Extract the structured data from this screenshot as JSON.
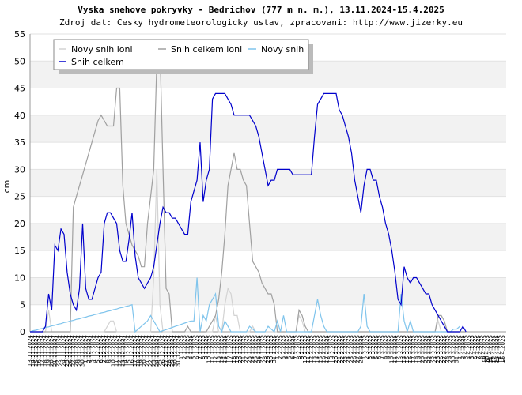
{
  "chart_data": {
    "type": "line",
    "title": "Vyska snehove pokryvky - Bedrichov (777 m n. m.), 13.11.2024-15.4.2025",
    "subtitle": "Zdroj dat: Cesky hydrometeorologicky ustav, zpracovani: http://www.jizerky.eu",
    "y_label": "cm",
    "x_label": "datum",
    "ylim": [
      0,
      55
    ],
    "yticks": [
      0,
      5,
      10,
      15,
      20,
      25,
      30,
      35,
      40,
      45,
      50,
      55
    ],
    "grid": true,
    "legend": "top-left",
    "categories": [
      "13.11.2024",
      "14.11.2024",
      "15.11.2024",
      "16.11.2024",
      "17.11.2024",
      "18.11.2024",
      "19.11.2024",
      "20.11.2024",
      "21.11.2024",
      "22.11.2024",
      "23.11.2024",
      "24.11.2024",
      "25.11.2024",
      "26.11.2024",
      "27.11.2024",
      "28.11.2024",
      "29.11.2024",
      "30.11.2024",
      "1.12.2024",
      "2.12.2024",
      "3.12.2024",
      "4.12.2024",
      "5.12.2024",
      "6.12.2024",
      "7.12.2024",
      "8.12.2024",
      "9.12.2024",
      "10.12.2024",
      "11.12.2024",
      "12.12.2024",
      "13.12.2024",
      "14.12.2024",
      "15.12.2024",
      "16.12.2024",
      "17.12.2024",
      "18.12.2024",
      "19.12.2024",
      "20.12.2024",
      "21.12.2024",
      "22.12.2024",
      "23.12.2024",
      "24.12.2024",
      "25.12.2024",
      "26.12.2024",
      "27.12.2024",
      "28.12.2024",
      "29.12.2024",
      "30.12.2024",
      "31.12.2024",
      "1.1.2025",
      "2.1.2025",
      "3.1.2025",
      "4.1.2025",
      "5.1.2025",
      "6.1.2025",
      "7.1.2025",
      "8.1.2025",
      "9.1.2025",
      "10.1.2025",
      "11.1.2025",
      "12.1.2025",
      "13.1.2025",
      "14.1.2025",
      "15.1.2025",
      "16.1.2025",
      "17.1.2025",
      "18.1.2025",
      "19.1.2025",
      "20.1.2025",
      "21.1.2025",
      "22.1.2025",
      "23.1.2025",
      "24.1.2025",
      "25.1.2025",
      "26.1.2025",
      "27.1.2025",
      "28.1.2025",
      "29.1.2025",
      "30.1.2025",
      "31.1.2025",
      "1.2.2025",
      "2.2.2025",
      "3.2.2025",
      "4.2.2025",
      "5.2.2025",
      "6.2.2025",
      "7.2.2025",
      "8.2.2025",
      "9.2.2025",
      "10.2.2025",
      "11.2.2025",
      "12.2.2025",
      "13.2.2025",
      "14.2.2025",
      "15.2.2025",
      "16.2.2025",
      "17.2.2025",
      "18.2.2025",
      "19.2.2025",
      "20.2.2025",
      "21.2.2025",
      "22.2.2025",
      "23.2.2025",
      "24.2.2025",
      "25.2.2025",
      "26.2.2025",
      "27.2.2025",
      "28.2.2025",
      "1.3.2025",
      "2.3.2025",
      "3.3.2025",
      "4.3.2025",
      "5.3.2025",
      "6.3.2025",
      "7.3.2025",
      "8.3.2025",
      "9.3.2025",
      "10.3.2025",
      "11.3.2025",
      "12.3.2025",
      "13.3.2025",
      "14.3.2025",
      "15.3.2025",
      "16.3.2025",
      "17.3.2025",
      "18.3.2025",
      "19.3.2025",
      "20.3.2025",
      "21.3.2025",
      "22.3.2025",
      "23.3.2025",
      "24.3.2025",
      "25.3.2025",
      "26.3.2025",
      "27.3.2025",
      "28.3.2025",
      "29.3.2025",
      "30.3.2025",
      "31.3.2025",
      "1.4.2025",
      "2.4.2025",
      "3.4.2025",
      "4.4.2025",
      "5.4.2025",
      "6.4.2025",
      "7.4.2025",
      "8.4.2025",
      "9.4.2025",
      "10.4.2025",
      "11.4.2025",
      "12.4.2025",
      "13.4.2025",
      "14.4.2025",
      "15.4.2025"
    ],
    "series": [
      {
        "name": "Novy snih loni",
        "color": "#d3d3d3",
        "values": [
          0,
          0,
          0,
          0,
          0,
          0,
          4,
          0,
          0,
          0,
          0,
          0,
          0,
          0,
          0,
          0,
          0,
          0,
          0,
          0,
          0,
          0,
          0,
          0,
          0,
          1,
          2,
          2,
          0,
          0,
          0,
          0,
          0,
          0,
          0,
          0,
          0,
          0,
          0,
          0,
          10,
          30,
          5,
          0,
          0,
          0,
          0,
          0,
          0,
          0,
          0,
          0,
          0,
          0,
          0,
          0,
          0,
          0,
          0,
          0,
          3,
          0,
          0,
          5,
          8,
          7,
          3,
          3,
          0,
          0,
          0,
          0,
          1,
          0,
          0,
          0,
          0,
          0,
          0,
          0,
          0,
          0,
          0,
          0,
          0,
          0,
          0,
          3,
          2,
          0,
          0,
          0,
          0,
          0,
          0,
          0,
          0,
          0,
          0,
          0,
          0,
          0,
          0,
          0,
          0,
          0,
          0,
          0,
          0,
          0,
          0,
          0,
          0,
          0,
          0,
          0,
          0,
          0,
          0,
          0,
          0,
          0,
          0,
          0,
          0,
          0,
          0,
          0,
          0,
          0,
          0,
          0,
          2,
          0,
          0,
          0,
          0,
          0,
          0,
          0,
          0,
          0,
          null,
          null,
          null,
          null,
          null,
          null,
          null,
          null,
          null,
          null,
          null,
          null
        ]
      },
      {
        "name": "Snih celkem loni",
        "color": "#a0a0a0",
        "values": [
          0,
          0,
          0,
          0,
          0,
          0,
          0,
          0,
          0,
          0,
          0,
          0,
          0,
          0,
          23,
          25,
          27,
          29,
          31,
          33,
          35,
          37,
          39,
          40,
          39,
          38,
          38,
          38,
          45,
          45,
          27,
          20,
          18,
          16,
          15,
          14,
          12,
          12,
          20,
          25,
          30,
          50,
          53,
          30,
          8,
          7,
          0,
          0,
          0,
          0,
          0,
          1,
          0,
          0,
          0,
          0,
          0,
          0,
          1,
          2,
          3,
          6,
          11,
          18,
          27,
          30,
          33,
          30,
          30,
          28,
          27,
          20,
          13,
          12,
          11,
          9,
          8,
          7,
          7,
          5,
          0,
          0,
          0,
          0,
          0,
          0,
          0,
          4,
          3,
          1,
          0,
          0,
          0,
          0,
          0,
          0,
          0,
          0,
          0,
          0,
          0,
          0,
          0,
          0,
          0,
          0,
          0,
          0,
          0,
          0,
          0,
          0,
          0,
          0,
          0,
          0,
          0,
          0,
          0,
          0,
          0,
          0,
          0,
          0,
          0,
          0,
          0,
          0,
          0,
          0,
          0,
          0,
          3,
          3,
          2,
          0,
          0,
          0,
          0,
          0,
          0,
          0,
          null,
          null,
          null,
          null,
          null,
          null,
          null,
          null,
          null,
          null,
          null,
          null
        ]
      },
      {
        "name": "Novy snih",
        "color": "#7fc4ec",
        "values": [
          0,
          0.2,
          0.3,
          0.5,
          0.6,
          0.8,
          0.9,
          1.1,
          1.2,
          1.4,
          1.5,
          1.7,
          1.8,
          2,
          2.1,
          2.3,
          2.4,
          2.6,
          2.7,
          2.9,
          3,
          3.2,
          3.3,
          3.5,
          3.6,
          3.8,
          3.9,
          4.1,
          4.2,
          4.4,
          4.5,
          4.7,
          4.8,
          5,
          0,
          0.5,
          1,
          1.5,
          2,
          3,
          2,
          1,
          0,
          0.2,
          0.4,
          0.6,
          0.8,
          1,
          1.2,
          1.4,
          1.6,
          1.8,
          2,
          2,
          10,
          0,
          3,
          2,
          5,
          6,
          7,
          1,
          0,
          2,
          1,
          0,
          0,
          0,
          0,
          0,
          0,
          1,
          0.5,
          0,
          0,
          0,
          0,
          1,
          0.5,
          0,
          2,
          0,
          3,
          0,
          0,
          0,
          0,
          0,
          0,
          0,
          0,
          0,
          3,
          6,
          3,
          1,
          0,
          0,
          0,
          0,
          0,
          0,
          0,
          0,
          0,
          0,
          0,
          1,
          7,
          1,
          0,
          0,
          0,
          0,
          0,
          0,
          0,
          0,
          0,
          0,
          7,
          2,
          0,
          2,
          0,
          0,
          0,
          0,
          0,
          0,
          0,
          0,
          0,
          0,
          0,
          0,
          0,
          0.5,
          0.5,
          1,
          null,
          null,
          null,
          null,
          null,
          null,
          null,
          null,
          null,
          null,
          null,
          null,
          null,
          null
        ]
      },
      {
        "name": "Snih celkem",
        "color": "#0000cc",
        "values": [
          0,
          0,
          0,
          0,
          0,
          1,
          7,
          4,
          16,
          15,
          19,
          18,
          11,
          7,
          5,
          4,
          8,
          20,
          8,
          6,
          6,
          8,
          10,
          11,
          20,
          22,
          22,
          21,
          20,
          15,
          13,
          13,
          17,
          22,
          14,
          10,
          9,
          8,
          9,
          10,
          12,
          16,
          20,
          23,
          22,
          22,
          21,
          21,
          20,
          19,
          18,
          18,
          24,
          26,
          28,
          35,
          24,
          28,
          30,
          43,
          44,
          44,
          44,
          44,
          43,
          42,
          40,
          40,
          40,
          40,
          40,
          40,
          39,
          38,
          36,
          33,
          30,
          27,
          28,
          28,
          30,
          30,
          30,
          30,
          30,
          29,
          29,
          29,
          29,
          29,
          29,
          29,
          36,
          42,
          43,
          44,
          44,
          44,
          44,
          44,
          41,
          40,
          38,
          36,
          33,
          28,
          25,
          22,
          27,
          30,
          30,
          28,
          28,
          25,
          23,
          20,
          18,
          15,
          11,
          6,
          5,
          12,
          10,
          9,
          10,
          10,
          9,
          8,
          7,
          7,
          5,
          4,
          3,
          2,
          1,
          0,
          0,
          0,
          0,
          0,
          1,
          0,
          null,
          null,
          null,
          null,
          null,
          null,
          null,
          null,
          null,
          null,
          null,
          null
        ]
      }
    ]
  }
}
